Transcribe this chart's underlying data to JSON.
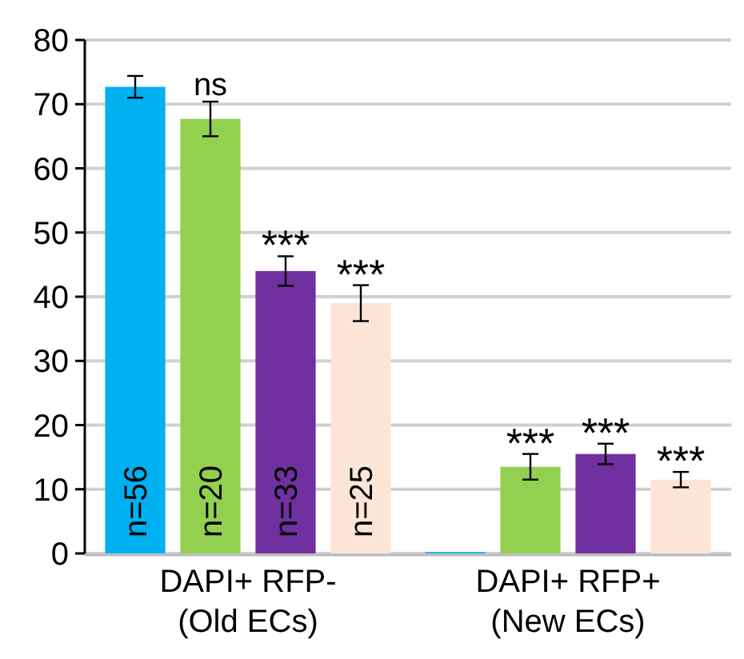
{
  "chart_data": {
    "type": "bar",
    "categories": [
      "DAPI+ RFP-\n(Old ECs)",
      "DAPI+ RFP+\n(New ECs)"
    ],
    "series": [
      {
        "color": "#00b0f0",
        "values": [
          72.7,
          0.2
        ],
        "errors": [
          1.7,
          null
        ],
        "value_labels": [
          null,
          null
        ]
      },
      {
        "color": "#92d050",
        "values": [
          67.7,
          13.5
        ],
        "errors": [
          2.7,
          2
        ],
        "value_labels": [
          "ns",
          "***"
        ]
      },
      {
        "color": "#7030a0",
        "values": [
          44,
          15.5
        ],
        "errors": [
          2.3,
          1.6
        ],
        "value_labels": [
          "***",
          "***"
        ]
      },
      {
        "color": "#fbe5d6",
        "values": [
          39,
          11.5
        ],
        "errors": [
          2.8,
          1.2
        ],
        "value_labels": [
          "***",
          "***"
        ]
      }
    ],
    "annotations": [
      "n=56",
      "n=20",
      "n=33",
      "n=25"
    ],
    "ylim": [
      0,
      80
    ],
    "yticks": [
      0,
      10,
      20,
      30,
      40,
      50,
      60,
      70,
      80
    ],
    "grid": "y"
  }
}
